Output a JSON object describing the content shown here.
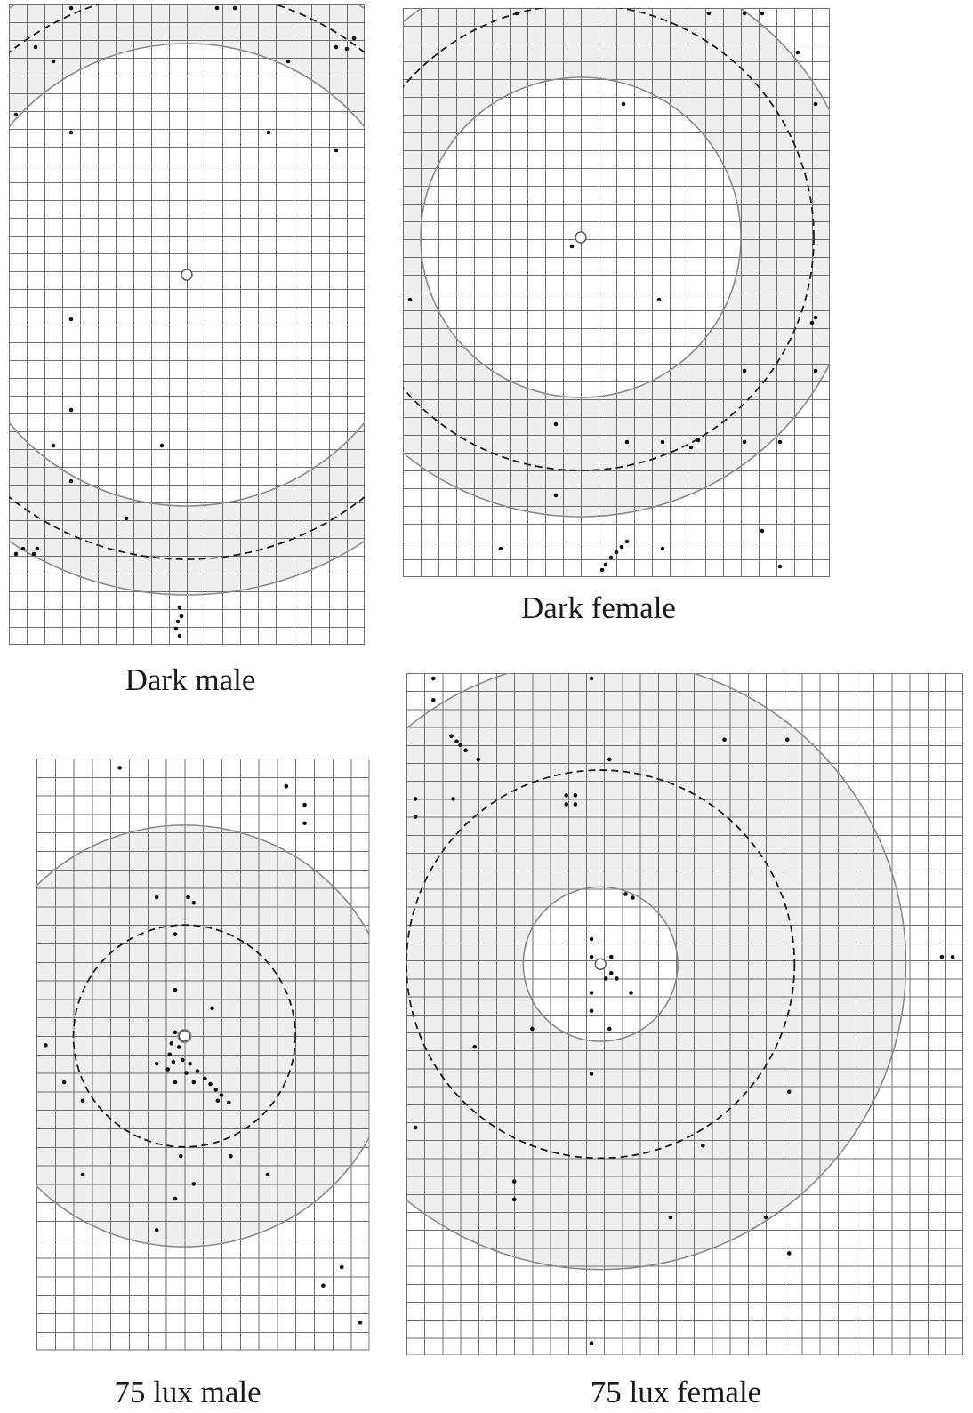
{
  "figure": {
    "panels": [
      {
        "id": "dark-male",
        "caption": "Dark male",
        "cell_size": 20,
        "cols": 20,
        "rows": 36,
        "origin": [
          10.0,
          15.2
        ],
        "radius_inner": 13.0,
        "radius_dashed": 16.0,
        "radius_outer": 18.0,
        "dots": [
          [
            3.5,
            0.2
          ],
          [
            11.7,
            0.2
          ],
          [
            12.7,
            0.2
          ],
          [
            19.4,
            1.9
          ],
          [
            1.5,
            2.4
          ],
          [
            2.5,
            3.2
          ],
          [
            15.7,
            3.2
          ],
          [
            0.4,
            6.2
          ],
          [
            3.5,
            7.2
          ],
          [
            14.6,
            7.2
          ],
          [
            18.4,
            8.2
          ],
          [
            3.5,
            17.7
          ],
          [
            3.5,
            22.8
          ],
          [
            2.5,
            24.8
          ],
          [
            8.6,
            24.8
          ],
          [
            3.5,
            26.8
          ],
          [
            6.6,
            28.9
          ],
          [
            0.4,
            30.9
          ],
          [
            0.8,
            30.6
          ],
          [
            1.4,
            30.9
          ],
          [
            1.6,
            30.6
          ],
          [
            9.6,
            33.9
          ],
          [
            9.7,
            34.4
          ],
          [
            9.5,
            34.7
          ],
          [
            9.4,
            35.1
          ],
          [
            9.6,
            35.5
          ],
          [
            18.4,
            2.4
          ],
          [
            19.0,
            2.5
          ]
        ]
      },
      {
        "id": "dark-female",
        "caption": "Dark female",
        "cell_size": 20,
        "cols": 24,
        "rows": 32,
        "origin": [
          10.0,
          12.9
        ],
        "radius_inner": 9.0,
        "radius_dashed": 13.1,
        "radius_outer": 15.7,
        "dots": [
          [
            6.4,
            0.3
          ],
          [
            17.2,
            0.3
          ],
          [
            19.2,
            0.3
          ],
          [
            20.2,
            0.3
          ],
          [
            22.2,
            2.5
          ],
          [
            12.4,
            5.4
          ],
          [
            23.2,
            5.4
          ],
          [
            9.5,
            13.4
          ],
          [
            0.4,
            16.4
          ],
          [
            14.4,
            16.4
          ],
          [
            23.2,
            17.4
          ],
          [
            23.0,
            17.7
          ],
          [
            19.2,
            20.4
          ],
          [
            23.2,
            20.4
          ],
          [
            8.6,
            23.4
          ],
          [
            12.6,
            24.4
          ],
          [
            14.6,
            24.4
          ],
          [
            16.2,
            24.7
          ],
          [
            16.6,
            24.3
          ],
          [
            19.2,
            24.4
          ],
          [
            21.2,
            24.4
          ],
          [
            8.6,
            27.4
          ],
          [
            20.2,
            29.4
          ],
          [
            5.5,
            30.4
          ],
          [
            14.6,
            30.4
          ],
          [
            21.2,
            31.4
          ],
          [
            11.2,
            31.6
          ],
          [
            11.4,
            31.3
          ],
          [
            11.7,
            30.9
          ],
          [
            12.0,
            30.6
          ],
          [
            12.3,
            30.3
          ],
          [
            12.6,
            30.0
          ]
        ]
      },
      {
        "id": "75-lux-male",
        "caption": "75 lux male",
        "cell_size": 20.8,
        "cols": 18,
        "rows": 32,
        "origin": [
          8.0,
          15.0
        ],
        "radius_inner": 0.35,
        "radius_dashed": 6.0,
        "radius_outer": 11.4,
        "dots": [
          [
            4.5,
            0.5
          ],
          [
            13.5,
            1.5
          ],
          [
            14.5,
            2.5
          ],
          [
            14.5,
            3.5
          ],
          [
            6.5,
            7.5
          ],
          [
            8.2,
            7.5
          ],
          [
            8.5,
            7.8
          ],
          [
            7.5,
            9.5
          ],
          [
            7.5,
            12.5
          ],
          [
            9.5,
            13.5
          ],
          [
            0.5,
            15.5
          ],
          [
            1.5,
            17.5
          ],
          [
            2.5,
            18.5
          ],
          [
            7.5,
            17.5
          ],
          [
            8.5,
            17.5
          ],
          [
            9.8,
            18.5
          ],
          [
            10.5,
            21.5
          ],
          [
            7.8,
            21.5
          ],
          [
            8.5,
            23.0
          ],
          [
            2.5,
            22.5
          ],
          [
            12.5,
            22.5
          ],
          [
            7.5,
            23.8
          ],
          [
            6.5,
            25.5
          ],
          [
            15.5,
            28.5
          ],
          [
            16.5,
            27.5
          ],
          [
            17.5,
            30.5
          ],
          [
            7.5,
            14.8
          ],
          [
            7.8,
            15.1
          ],
          [
            7.3,
            15.4
          ],
          [
            7.7,
            15.6
          ],
          [
            7.2,
            16.0
          ],
          [
            7.4,
            16.4
          ],
          [
            7.1,
            16.8
          ],
          [
            6.5,
            16.5
          ],
          [
            7.9,
            16.3
          ],
          [
            8.3,
            16.5
          ],
          [
            8.7,
            16.9
          ],
          [
            9.1,
            17.3
          ],
          [
            9.4,
            17.6
          ],
          [
            9.7,
            17.9
          ],
          [
            10.0,
            18.2
          ],
          [
            10.4,
            18.6
          ],
          [
            8.1,
            17.0
          ]
        ]
      },
      {
        "id": "75-lux-female",
        "caption": "75 lux female",
        "cell_size": 20.2,
        "cols": 31,
        "rows": 38,
        "origin": [
          10.8,
          16.2
        ],
        "radius_inner": 4.3,
        "radius_dashed": 10.8,
        "radius_outer": 17.0,
        "dots": [
          [
            1.5,
            0.3
          ],
          [
            10.3,
            0.3
          ],
          [
            1.5,
            1.5
          ],
          [
            2.5,
            3.5
          ],
          [
            2.8,
            3.8
          ],
          [
            3.0,
            4.0
          ],
          [
            3.3,
            4.3
          ],
          [
            4.0,
            4.8
          ],
          [
            11.3,
            4.8
          ],
          [
            17.7,
            3.7
          ],
          [
            21.2,
            3.7
          ],
          [
            0.5,
            7.0
          ],
          [
            2.6,
            7.0
          ],
          [
            0.5,
            8.0
          ],
          [
            8.9,
            6.8
          ],
          [
            9.4,
            6.8
          ],
          [
            8.9,
            7.3
          ],
          [
            9.4,
            7.3
          ],
          [
            12.2,
            12.3
          ],
          [
            12.6,
            12.5
          ],
          [
            10.3,
            14.8
          ],
          [
            10.3,
            15.8
          ],
          [
            11.4,
            15.8
          ],
          [
            10.8,
            16.4
          ],
          [
            11.4,
            16.7
          ],
          [
            11.1,
            17.0
          ],
          [
            11.7,
            17.0
          ],
          [
            10.3,
            17.8
          ],
          [
            12.5,
            17.8
          ],
          [
            10.3,
            18.8
          ],
          [
            7.0,
            19.8
          ],
          [
            11.3,
            19.8
          ],
          [
            3.8,
            20.8
          ],
          [
            10.3,
            22.3
          ],
          [
            21.3,
            23.3
          ],
          [
            0.5,
            25.3
          ],
          [
            16.5,
            26.3
          ],
          [
            6.0,
            28.3
          ],
          [
            6.0,
            29.3
          ],
          [
            14.7,
            30.3
          ],
          [
            20.0,
            30.3
          ],
          [
            21.3,
            32.3
          ],
          [
            29.8,
            15.8
          ],
          [
            30.4,
            15.8
          ],
          [
            10.3,
            37.3
          ]
        ]
      }
    ]
  }
}
